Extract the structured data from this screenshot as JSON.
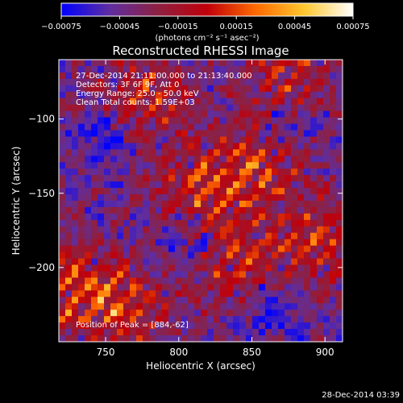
{
  "chart_data": {
    "type": "heatmap",
    "title": "Reconstructed RHESSI Image",
    "xlabel": "Heliocentric X (arcsec)",
    "ylabel": "Heliocentric Y (arcsec)",
    "xlim": [
      718,
      912
    ],
    "ylim": [
      -250,
      -60
    ],
    "x_ticks": [
      {
        "value": 750,
        "label": "750"
      },
      {
        "value": 800,
        "label": "800"
      },
      {
        "value": 850,
        "label": "850"
      },
      {
        "value": 900,
        "label": "900"
      }
    ],
    "y_ticks": [
      {
        "value": -100,
        "label": "−100"
      },
      {
        "value": -150,
        "label": "−150"
      },
      {
        "value": -200,
        "label": "−200"
      }
    ],
    "colorbar": {
      "min": -0.00075,
      "max": 0.00075,
      "ticks": [
        {
          "value": -0.00075,
          "label": "−0.00075"
        },
        {
          "value": -0.00045,
          "label": "−0.00045"
        },
        {
          "value": -0.00015,
          "label": "−0.00015"
        },
        {
          "value": 0.00015,
          "label": "0.00015"
        },
        {
          "value": 0.00045,
          "label": "0.00045"
        },
        {
          "value": 0.00075,
          "label": "0.00075"
        }
      ],
      "unit_label": "(photons cm⁻² s⁻¹ asec⁻²)",
      "colormap": [
        "#0000ff",
        "#5f2ea0",
        "#8e2040",
        "#c0000a",
        "#ff6a00",
        "#ffc830",
        "#ffffff"
      ]
    },
    "annotations": [
      "27-Dec-2014 21:11:00.000 to 21:13:40.000",
      "Detectors: 3F 6F 9F, Att 0",
      "Energy Range: 25.0 - 50.0 keV",
      "Clean     Total counts: 1.59E+03"
    ],
    "peak_label": "Position of Peak = [884,-62]",
    "peak": [
      884,
      -62
    ],
    "grid": false
  },
  "footer": {
    "timestamp": "28-Dec-2014 03:39"
  }
}
